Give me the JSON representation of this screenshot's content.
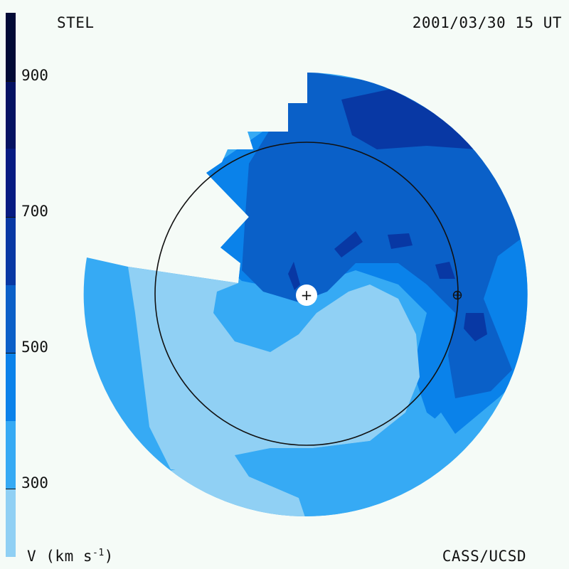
{
  "header": {
    "left_label": "STEL",
    "right_label": "2001/03/30 15 UT"
  },
  "footer": {
    "left_label": "V (km s",
    "left_exp": "-1",
    "left_close": ")",
    "right_label": "CASS/UCSD"
  },
  "chart_data": {
    "type": "heatmap",
    "title": "",
    "colorbar": {
      "ticks": [
        "300",
        "500",
        "700",
        "900"
      ],
      "tick_values": [
        300,
        500,
        700,
        900
      ],
      "range": [
        200,
        1000
      ],
      "levels": [
        {
          "from": 200,
          "to": 300,
          "color": "#90d0f4"
        },
        {
          "from": 300,
          "to": 400,
          "color": "#36aaf4"
        },
        {
          "from": 400,
          "to": 500,
          "color": "#0a82ea"
        },
        {
          "from": 500,
          "to": 600,
          "color": "#0a60c8"
        },
        {
          "from": 600,
          "to": 700,
          "color": "#0838a4"
        },
        {
          "from": 700,
          "to": 800,
          "color": "#061b82"
        },
        {
          "from": 800,
          "to": 900,
          "color": "#041262"
        },
        {
          "from": 900,
          "to": 1000,
          "color": "#020a36"
        }
      ]
    },
    "markers": {
      "sun_symbol": "+",
      "earth_symbol": "⊕"
    },
    "earth_orbit": "1 AU circle"
  }
}
